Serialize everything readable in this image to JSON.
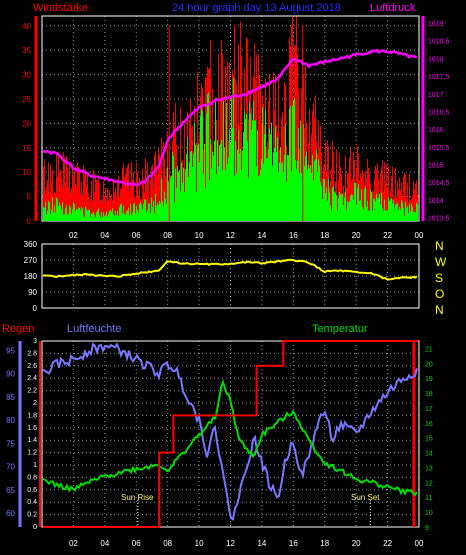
{
  "header": {
    "left": "Windstärke",
    "center": "24 hour graph day  13 August 2018",
    "right": "Luftdruck"
  },
  "x_tick_labels": [
    "02",
    "04",
    "06",
    "08",
    "10",
    "12",
    "14",
    "16",
    "18",
    "20",
    "22",
    "00"
  ],
  "colors": {
    "wind_gust": "#ff0000",
    "wind_avg": "#00ff00",
    "pressure": "#ff00ff",
    "direction": "#ffff00",
    "rain": "#ff0000",
    "humidity": "#7777ff",
    "temperature": "#00dd00",
    "frame": "#ffffff",
    "grid": "#9a9a9a",
    "header_left": "#ff0000",
    "header_center": "#2222ff",
    "header_right": "#ff00ff"
  },
  "chart_data": [
    {
      "type": "bar",
      "panel": "wind",
      "x_range": [
        0,
        24
      ],
      "ylim_left": [
        0,
        42
      ],
      "ylim_right": [
        1013.4,
        1019.2
      ],
      "left_ticks": [
        "0",
        "5",
        "10",
        "15",
        "20",
        "25",
        "30",
        "35",
        "40"
      ],
      "right_ticks": [
        "1013.5",
        "1014",
        "1014.5",
        "1015",
        "1015.5",
        "1016",
        "1016.5",
        "1017",
        "1017.5",
        "1018",
        "1018.5",
        "1019"
      ],
      "wind_profile": {
        "x": [
          0,
          1,
          2,
          3,
          4,
          5,
          6,
          7,
          7.5,
          8,
          9,
          10,
          11,
          12,
          13,
          14,
          15,
          16,
          17,
          18,
          19,
          20,
          21,
          22,
          23,
          24
        ],
        "gust": [
          10,
          11,
          10,
          8,
          7,
          9,
          9,
          10,
          12,
          17,
          19,
          24,
          30,
          31,
          30,
          26,
          22,
          33,
          24,
          14,
          11,
          12,
          11,
          9,
          8,
          7
        ],
        "avg": [
          3,
          4,
          3,
          2,
          2,
          3,
          3,
          4,
          6,
          10,
          12,
          17,
          22,
          24,
          23,
          18,
          14,
          22,
          15,
          7,
          5,
          6,
          5,
          4,
          3,
          3
        ]
      },
      "pressure": {
        "x": [
          0,
          1,
          2,
          3,
          4,
          5,
          6,
          6.5,
          7,
          7.5,
          8,
          9,
          10,
          11,
          12,
          13,
          14,
          15,
          16,
          17,
          18,
          19,
          20,
          21,
          22,
          23,
          24
        ],
        "y": [
          1015.4,
          1015.3,
          1014.9,
          1014.7,
          1014.6,
          1014.5,
          1014.4,
          1014.5,
          1014.7,
          1015.0,
          1015.7,
          1016.2,
          1016.6,
          1016.8,
          1016.9,
          1017.0,
          1017.2,
          1017.4,
          1018.0,
          1017.8,
          1017.9,
          1018.0,
          1018.1,
          1018.2,
          1018.2,
          1018.1,
          1018.0
        ]
      }
    },
    {
      "type": "line",
      "panel": "wind_direction",
      "ylim": [
        0,
        360
      ],
      "left_ticks": [
        "0",
        "90",
        "180",
        "270",
        "360"
      ],
      "right_labels": [
        "N",
        "W",
        "S",
        "O",
        "N"
      ],
      "series": [
        {
          "x": [
            0,
            1,
            2,
            3,
            4,
            5,
            6,
            7,
            7.5,
            8,
            9,
            10,
            11,
            12,
            13,
            14,
            15,
            16,
            17,
            18,
            19,
            20,
            21,
            22,
            23,
            24
          ],
          "values": [
            180,
            178,
            185,
            190,
            178,
            180,
            195,
            205,
            215,
            265,
            250,
            248,
            245,
            250,
            258,
            252,
            262,
            270,
            255,
            205,
            210,
            200,
            195,
            160,
            170,
            175
          ]
        }
      ]
    },
    {
      "type": "line",
      "panel": "rain_humidity_temperature",
      "title_left": "Regen",
      "title_humidity": "Luftfeuchte",
      "title_temperature": "Temperatur",
      "rain_ticks": [
        "0",
        "0.2",
        "0.4",
        "0.6",
        "0.8",
        "1",
        "1.2",
        "1.4",
        "1.6",
        "1.8",
        "2",
        "2.2",
        "2.4",
        "2.6",
        "2.8",
        "3"
      ],
      "humidity_ticks": [
        "60",
        "65",
        "70",
        "75",
        "80",
        "85",
        "90",
        "95"
      ],
      "temperature_ticks": [
        "9",
        "10",
        "11",
        "12",
        "13",
        "14",
        "15",
        "16",
        "17",
        "18",
        "19",
        "20",
        "21"
      ],
      "ylim_rain": [
        0,
        3
      ],
      "ylim_humidity": [
        57,
        97
      ],
      "ylim_temperature": [
        9,
        21.5
      ],
      "annotations": [
        "Sun Rise",
        "Sun Set"
      ],
      "series": [
        {
          "name": "Regen",
          "x": [
            0,
            7.4,
            7.4,
            8.3,
            8.3,
            12,
            12,
            13.6,
            13.6,
            15.3,
            15.3,
            17,
            17,
            24
          ],
          "values": [
            0,
            0,
            1.2,
            1.2,
            1.8,
            1.8,
            1.8,
            1.8,
            2.6,
            2.6,
            3,
            3,
            3,
            3
          ]
        },
        {
          "name": "Luftfeuchte",
          "x": [
            0,
            1,
            2,
            3,
            4,
            5,
            6,
            7,
            7.5,
            8,
            8.5,
            9,
            10,
            10.5,
            11,
            11.5,
            12,
            12.5,
            13,
            13.5,
            14,
            14.5,
            15,
            15.5,
            16,
            16.5,
            17,
            17.5,
            18,
            18.5,
            19,
            20,
            21,
            22,
            23,
            24
          ],
          "values": [
            90,
            92,
            93,
            95,
            96,
            95,
            93,
            91,
            90,
            92,
            91,
            87,
            80,
            73,
            78,
            70,
            58,
            63,
            70,
            76,
            71,
            66,
            63,
            71,
            76,
            68,
            72,
            79,
            82,
            76,
            79,
            77,
            82,
            86,
            89,
            91
          ]
        },
        {
          "name": "Temperatur",
          "x": [
            0,
            1,
            2,
            3,
            4,
            5,
            6,
            7,
            7.5,
            8,
            9,
            10,
            11,
            11.5,
            12,
            12.5,
            13,
            13.5,
            14,
            15,
            16,
            17,
            18,
            19,
            20,
            21,
            22,
            23,
            24
          ],
          "values": [
            12.2,
            11.8,
            11.5,
            12.0,
            12.4,
            12.7,
            12.9,
            13.1,
            13.2,
            12.8,
            14.0,
            15.2,
            16.3,
            18.7,
            17.5,
            15.0,
            14.2,
            13.8,
            15.2,
            16.0,
            16.8,
            14.8,
            13.3,
            12.8,
            12.2,
            12.0,
            11.7,
            11.4,
            11.3
          ]
        }
      ]
    }
  ]
}
